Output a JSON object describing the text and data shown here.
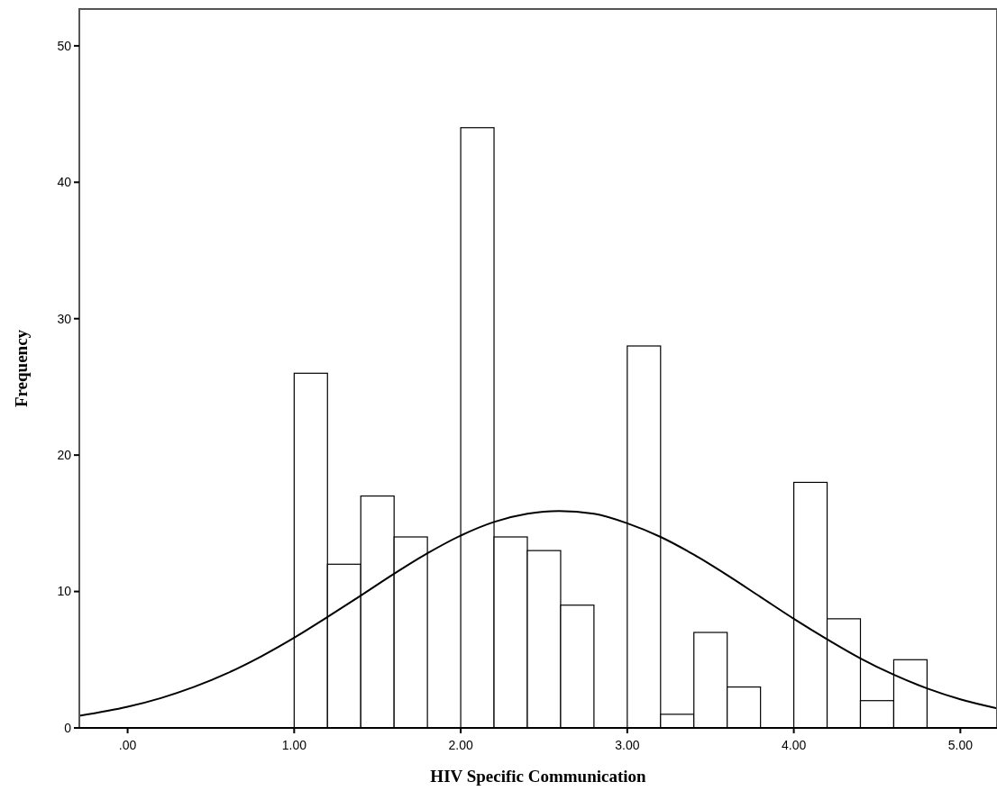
{
  "chart_data": {
    "type": "histogram",
    "xlabel": "HIV Specific Communication",
    "ylabel": "Frequency",
    "bins": [
      1.0,
      1.2,
      1.4,
      1.6,
      1.8,
      2.0,
      2.2,
      2.4,
      2.6,
      2.8,
      3.0,
      3.2,
      3.4,
      3.6,
      3.8,
      4.0,
      4.2,
      4.4,
      4.6,
      4.8
    ],
    "values": [
      26,
      12,
      17,
      14,
      0,
      44,
      14,
      13,
      9,
      0,
      28,
      1,
      7,
      3,
      0,
      18,
      8,
      2,
      5
    ],
    "color": "#ffffff",
    "series": [
      {
        "type": "line",
        "color": "#000000",
        "x": [
          -0.29,
          0,
          0.2,
          0.4,
          0.6,
          0.8,
          1.0,
          1.2,
          1.4,
          1.6,
          1.8,
          2.0,
          2.2,
          2.4,
          2.59,
          2.8,
          3.0,
          3.2,
          3.4,
          3.6,
          3.8,
          4.0,
          4.2,
          4.4,
          4.6,
          4.8,
          5.0,
          5.22
        ],
        "values": [
          0.89,
          1.55,
          2.19,
          3.01,
          4.02,
          5.23,
          6.61,
          8.13,
          9.7,
          11.3,
          12.8,
          14.1,
          15.1,
          15.7,
          15.9,
          15.7,
          15.0,
          14.0,
          12.7,
          11.2,
          9.6,
          8.0,
          6.5,
          5.1,
          3.9,
          2.9,
          2.1,
          1.44
        ]
      }
    ],
    "xlim": [
      -0.29,
      5.22
    ],
    "xticks": [
      {
        "value": 0,
        "label": ".00"
      },
      {
        "value": 1,
        "label": "1.00"
      },
      {
        "value": 2,
        "label": "2.00"
      },
      {
        "value": 3,
        "label": "3.00"
      },
      {
        "value": 4,
        "label": "4.00"
      },
      {
        "value": 5,
        "label": "5.00"
      }
    ],
    "ylim": [
      0,
      52.7
    ],
    "yticks": [
      0,
      10,
      20,
      30,
      40,
      50
    ],
    "grid": false
  }
}
